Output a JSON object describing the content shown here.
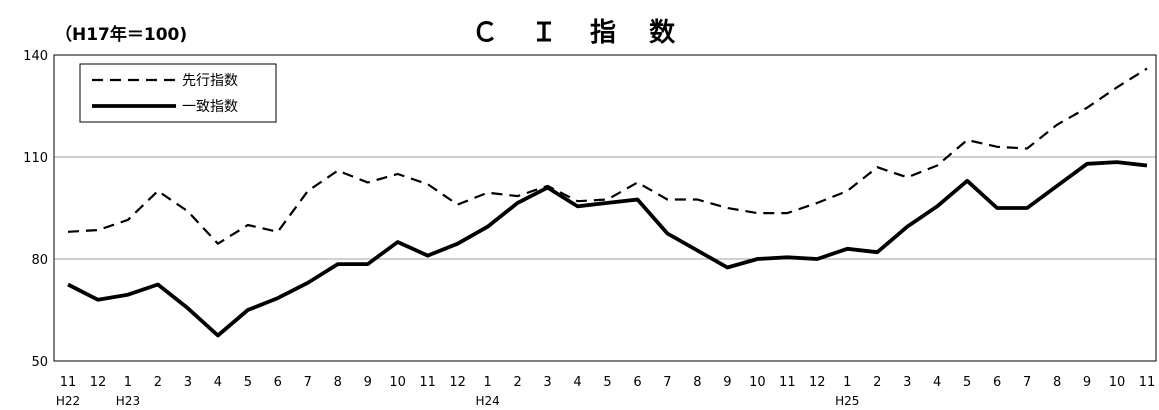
{
  "chart_data": {
    "type": "line",
    "title": "Ｃ Ｉ 指 数",
    "unit_label": "（H17年＝100)",
    "ylim": [
      50,
      140
    ],
    "yticks": [
      50,
      80,
      110,
      140
    ],
    "grid": "horizontal",
    "legend_position": "top-left",
    "months": [
      "11",
      "12",
      "1",
      "2",
      "3",
      "4",
      "5",
      "6",
      "7",
      "8",
      "9",
      "10",
      "11",
      "12",
      "1",
      "2",
      "3",
      "4",
      "5",
      "6",
      "7",
      "8",
      "9",
      "10",
      "11",
      "12",
      "1",
      "2",
      "3",
      "4",
      "5",
      "6",
      "7",
      "8",
      "9",
      "10",
      "11"
    ],
    "year_labels": [
      {
        "index": 0,
        "label": "H22"
      },
      {
        "index": 2,
        "label": "H23"
      },
      {
        "index": 14,
        "label": "H24"
      },
      {
        "index": 26,
        "label": "H25"
      }
    ],
    "series": [
      {
        "name": "先行指数",
        "style": "dashed",
        "color": "#000000",
        "values": [
          88,
          88.5,
          91.5,
          100,
          94,
          84.5,
          90,
          88,
          100,
          106,
          102.5,
          105,
          102,
          96,
          99.5,
          98.5,
          101.5,
          97,
          97.5,
          102.5,
          97.5,
          97.5,
          95,
          93.5,
          93.5,
          96.5,
          100,
          107,
          104,
          107.5,
          115,
          113,
          112.5,
          119.5,
          124.5,
          130.5,
          136
        ]
      },
      {
        "name": "一致指数",
        "style": "solid",
        "color": "#000000",
        "values": [
          72.5,
          68,
          69.5,
          72.5,
          65.5,
          57.5,
          65,
          68.5,
          73,
          78.5,
          78.5,
          85,
          81,
          84.5,
          89.5,
          96.5,
          101,
          95.5,
          96.5,
          97.5,
          87.5,
          82.5,
          77.5,
          80,
          80.5,
          80,
          83,
          82,
          89.5,
          95.5,
          103,
          95,
          95,
          101.5,
          108,
          108.5,
          107.5
        ]
      }
    ]
  }
}
